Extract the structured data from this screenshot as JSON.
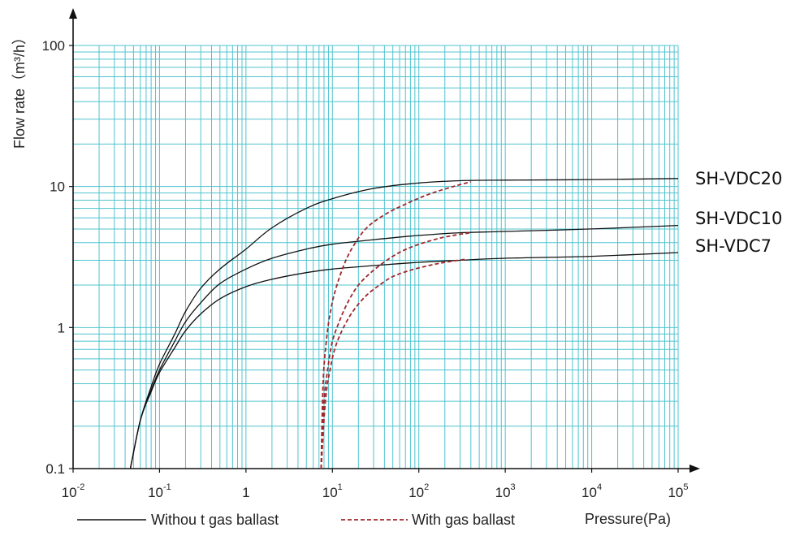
{
  "chart_data": {
    "type": "line",
    "title": "",
    "xlabel": "Pressure(Pa)",
    "ylabel": "Flow rate（m³/h）",
    "x_scale": "log",
    "y_scale": "log",
    "xlim": [
      0.01,
      100000
    ],
    "ylim": [
      0.1,
      100
    ],
    "grid": true,
    "x_tick_labels": [
      {
        "value": 0.01,
        "base": "10",
        "exp": "-2"
      },
      {
        "value": 0.1,
        "base": "10",
        "exp": "-1"
      },
      {
        "value": 1,
        "base": "1",
        "exp": ""
      },
      {
        "value": 10,
        "base": "10",
        "exp": "1"
      },
      {
        "value": 100,
        "base": "10",
        "exp": "2"
      },
      {
        "value": 1000,
        "base": "10",
        "exp": "3"
      },
      {
        "value": 10000,
        "base": "10",
        "exp": "4"
      },
      {
        "value": 100000,
        "base": "10",
        "exp": "5"
      }
    ],
    "y_tick_labels": [
      {
        "value": 0.1,
        "label": "0.1"
      },
      {
        "value": 1,
        "label": "1"
      },
      {
        "value": 10,
        "label": "10"
      },
      {
        "value": 100,
        "label": "100"
      }
    ],
    "legend": [
      {
        "label": "Withou t gas ballast",
        "style": "solid",
        "color": "#111111"
      },
      {
        "label": "With gas ballast",
        "style": "dashed",
        "color": "#a0282c"
      }
    ],
    "series": [
      {
        "name": "SH-VDC20",
        "group": "Withou t gas ballast",
        "x": [
          0.046,
          0.06,
          0.08,
          0.1,
          0.15,
          0.2,
          0.3,
          0.5,
          1,
          2,
          5,
          10,
          30,
          100,
          300,
          1000,
          10000,
          100000
        ],
        "y": [
          0.1,
          0.22,
          0.38,
          0.55,
          0.9,
          1.3,
          1.9,
          2.6,
          3.6,
          5.1,
          7.0,
          8.2,
          9.7,
          10.6,
          11.0,
          11.1,
          11.2,
          11.4
        ]
      },
      {
        "name": "SH-VDC10",
        "group": "Withou t gas ballast",
        "x": [
          0.046,
          0.06,
          0.08,
          0.1,
          0.15,
          0.2,
          0.3,
          0.5,
          1,
          2,
          5,
          10,
          30,
          100,
          300,
          1000,
          10000,
          100000
        ],
        "y": [
          0.1,
          0.22,
          0.36,
          0.5,
          0.8,
          1.1,
          1.5,
          2.05,
          2.6,
          3.1,
          3.6,
          3.9,
          4.2,
          4.5,
          4.7,
          4.8,
          5.0,
          5.3
        ]
      },
      {
        "name": "SH-VDC7",
        "group": "Withou t gas ballast",
        "x": [
          0.046,
          0.06,
          0.08,
          0.1,
          0.15,
          0.2,
          0.3,
          0.5,
          1,
          2,
          5,
          10,
          30,
          100,
          300,
          1000,
          10000,
          100000
        ],
        "y": [
          0.1,
          0.22,
          0.35,
          0.48,
          0.72,
          0.95,
          1.25,
          1.6,
          1.95,
          2.2,
          2.45,
          2.6,
          2.75,
          2.9,
          3.0,
          3.1,
          3.2,
          3.4
        ]
      },
      {
        "name": "SH-VDC20",
        "group": "With gas ballast",
        "x": [
          7.4,
          7.8,
          8.5,
          9.5,
          11,
          14,
          18,
          25,
          40,
          70,
          130,
          250,
          400
        ],
        "y": [
          0.1,
          0.4,
          0.8,
          1.3,
          1.9,
          2.9,
          3.9,
          5.1,
          6.3,
          7.5,
          8.8,
          10.0,
          10.8
        ]
      },
      {
        "name": "SH-VDC10",
        "group": "With gas ballast",
        "x": [
          7.4,
          8,
          9,
          10,
          12,
          15,
          20,
          30,
          50,
          80,
          150,
          250,
          400
        ],
        "y": [
          0.1,
          0.3,
          0.55,
          0.8,
          1.1,
          1.5,
          2.0,
          2.55,
          3.2,
          3.7,
          4.2,
          4.5,
          4.7
        ]
      },
      {
        "name": "SH-VDC7",
        "group": "With gas ballast",
        "x": [
          7.4,
          8.3,
          9.5,
          11,
          14,
          18,
          25,
          35,
          50,
          80,
          130,
          200,
          350
        ],
        "y": [
          0.1,
          0.3,
          0.52,
          0.75,
          1.05,
          1.35,
          1.7,
          2.0,
          2.3,
          2.55,
          2.75,
          2.9,
          3.05
        ]
      }
    ]
  }
}
